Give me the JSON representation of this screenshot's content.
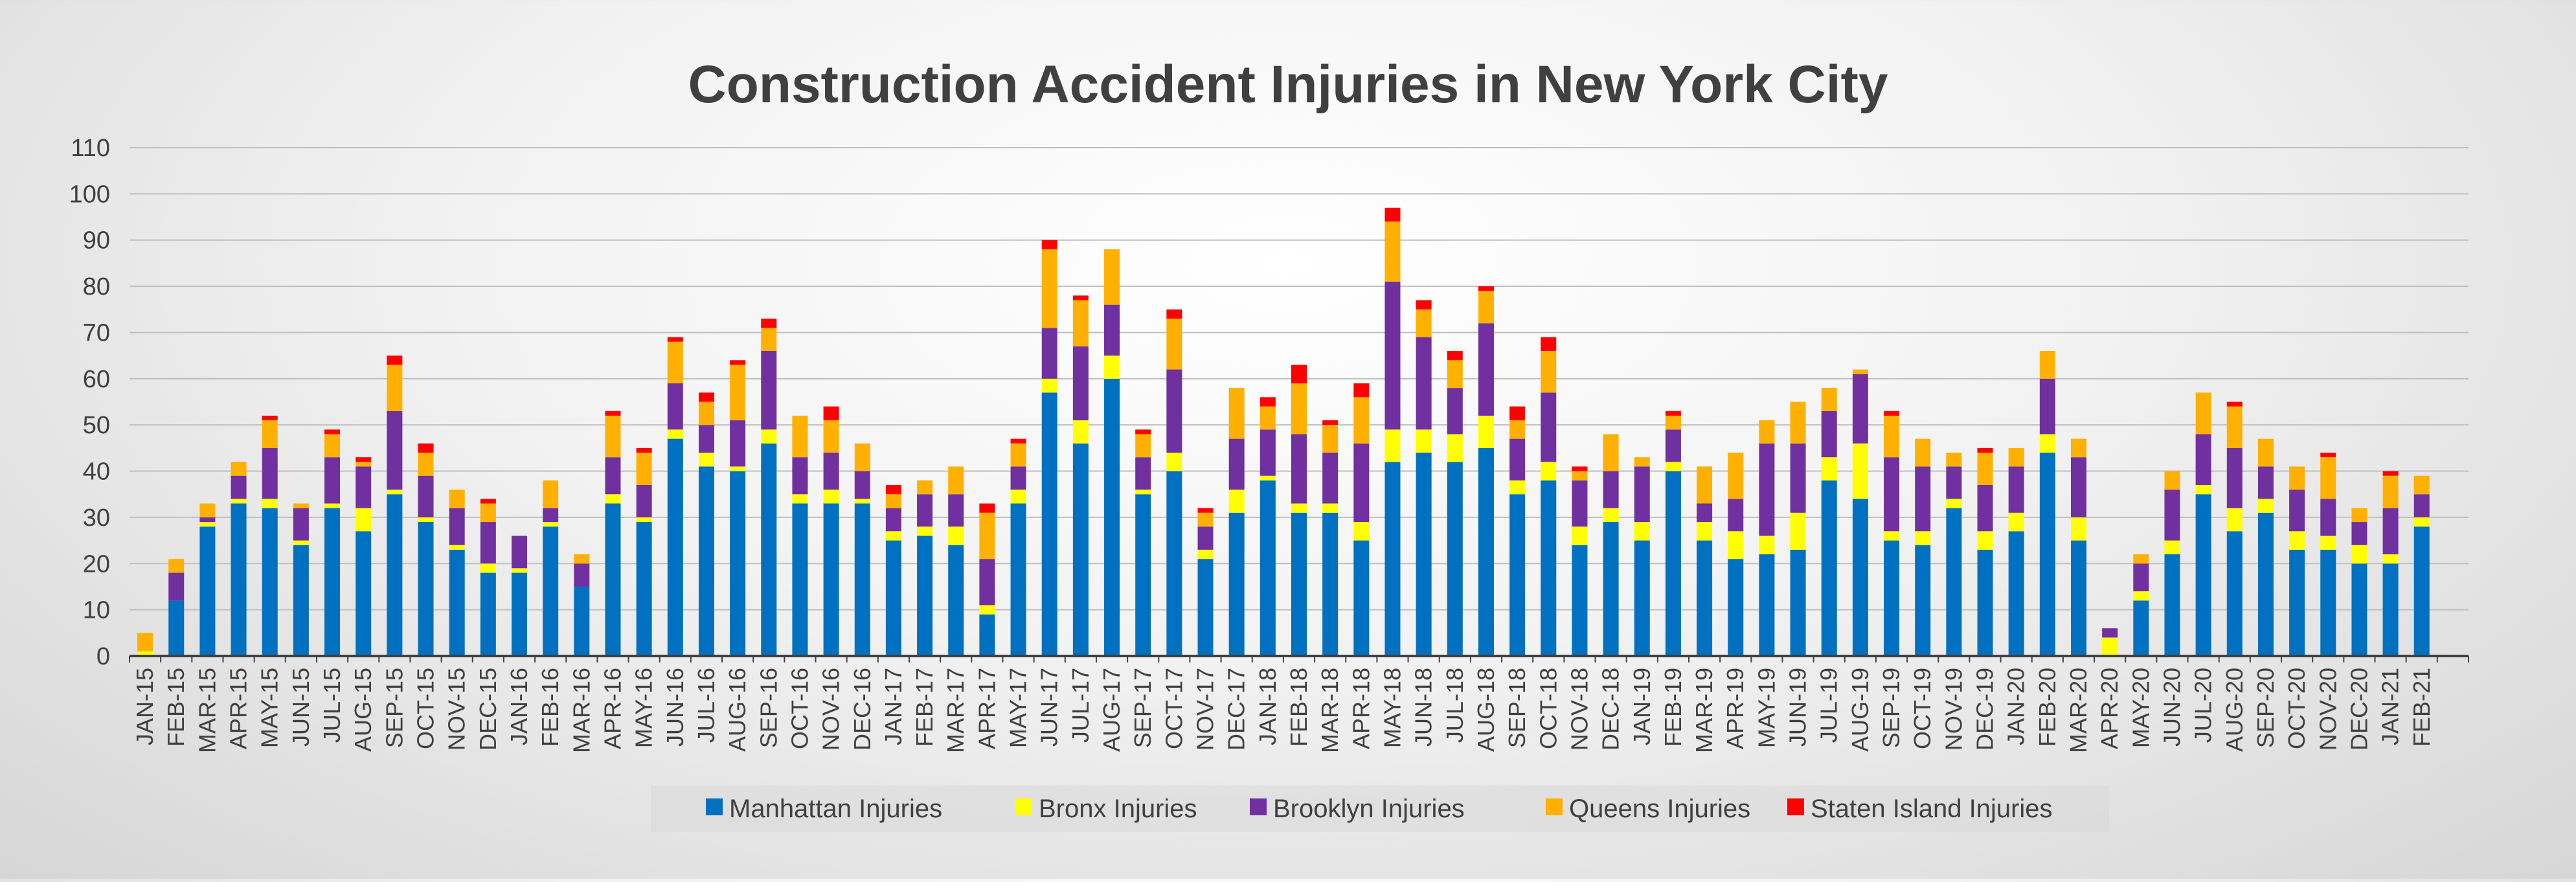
{
  "chart_data": {
    "type": "bar",
    "stacked": true,
    "title": "Construction Accident Injuries in New York City",
    "xlabel": "",
    "ylabel": "",
    "ylim": [
      0,
      110
    ],
    "yticks": [
      0,
      10,
      20,
      30,
      40,
      50,
      60,
      70,
      80,
      90,
      100,
      110
    ],
    "grid": true,
    "legend_position": "bottom",
    "categories": [
      "JAN-15",
      "FEB-15",
      "MAR-15",
      "APR-15",
      "MAY-15",
      "JUN-15",
      "JUL-15",
      "AUG-15",
      "SEP-15",
      "OCT-15",
      "NOV-15",
      "DEC-15",
      "JAN-16",
      "FEB-16",
      "MAR-16",
      "APR-16",
      "MAY-16",
      "JUN-16",
      "JUL-16",
      "AUG-16",
      "SEP-16",
      "OCT-16",
      "NOV-16",
      "DEC-16",
      "JAN-17",
      "FEB-17",
      "MAR-17",
      "APR-17",
      "MAY-17",
      "JUN-17",
      "JUL-17",
      "AUG-17",
      "SEP-17",
      "OCT-17",
      "NOV-17",
      "DEC-17",
      "JAN-18",
      "FEB-18",
      "MAR-18",
      "APR-18",
      "MAY-18",
      "JUN-18",
      "JUL-18",
      "AUG-18",
      "SEP-18",
      "OCT-18",
      "NOV-18",
      "DEC-18",
      "JAN-19",
      "FEB-19",
      "MAR-19",
      "APR-19",
      "MAY-19",
      "JUN-19",
      "JUL-19",
      "AUG-19",
      "SEP-19",
      "OCT-19",
      "NOV-19",
      "DEC-19",
      "JAN-20",
      "FEB-20",
      "MAR-20",
      "APR-20",
      "MAY-20",
      "JUN-20",
      "JUL-20",
      "AUG-20",
      "SEP-20",
      "OCT-20",
      "NOV-20",
      "DEC-20",
      "JAN-21",
      "FEB-21"
    ],
    "bar_slots": 75,
    "series": [
      {
        "name": "Manhattan Injuries",
        "color": "#0070C0",
        "values": [
          0,
          12,
          28,
          33,
          32,
          24,
          32,
          27,
          35,
          29,
          23,
          18,
          18,
          28,
          15,
          33,
          29,
          47,
          41,
          40,
          46,
          33,
          33,
          33,
          25,
          26,
          24,
          9,
          33,
          57,
          46,
          60,
          35,
          40,
          21,
          31,
          38,
          31,
          31,
          25,
          42,
          44,
          42,
          45,
          35,
          38,
          24,
          29,
          25,
          40,
          25,
          21,
          22,
          23,
          38,
          34,
          25,
          24,
          32,
          23,
          27,
          44,
          25,
          0,
          12,
          22,
          35,
          27,
          31,
          23,
          23,
          20,
          20,
          28
        ]
      },
      {
        "name": "Bronx Injuries",
        "color": "#FFFF00",
        "values": [
          1,
          0,
          1,
          1,
          2,
          1,
          1,
          5,
          1,
          1,
          1,
          2,
          1,
          1,
          0,
          2,
          1,
          2,
          3,
          1,
          3,
          2,
          3,
          1,
          2,
          2,
          4,
          2,
          3,
          3,
          5,
          5,
          1,
          4,
          2,
          5,
          1,
          2,
          2,
          4,
          7,
          5,
          6,
          7,
          3,
          4,
          4,
          3,
          4,
          2,
          4,
          6,
          4,
          8,
          5,
          12,
          2,
          3,
          2,
          4,
          4,
          4,
          5,
          4,
          2,
          3,
          2,
          5,
          3,
          4,
          3,
          4,
          2,
          2
        ]
      },
      {
        "name": "Brooklyn Injuries",
        "color": "#7030A0",
        "values": [
          0,
          6,
          1,
          5,
          11,
          7,
          10,
          9,
          17,
          9,
          8,
          9,
          7,
          3,
          5,
          8,
          7,
          10,
          6,
          10,
          17,
          8,
          8,
          6,
          5,
          7,
          7,
          10,
          5,
          11,
          16,
          11,
          7,
          18,
          5,
          11,
          10,
          15,
          11,
          17,
          32,
          20,
          10,
          20,
          9,
          15,
          10,
          8,
          12,
          7,
          4,
          7,
          20,
          15,
          10,
          15,
          16,
          14,
          7,
          10,
          10,
          12,
          13,
          2,
          6,
          11,
          11,
          13,
          7,
          9,
          8,
          5,
          10,
          5
        ]
      },
      {
        "name": "Queens Injuries",
        "color": "#FFB000",
        "values": [
          4,
          3,
          3,
          3,
          6,
          1,
          5,
          1,
          10,
          5,
          4,
          4,
          0,
          6,
          2,
          9,
          7,
          9,
          5,
          12,
          5,
          9,
          7,
          6,
          3,
          3,
          6,
          10,
          5,
          17,
          10,
          12,
          5,
          11,
          3,
          11,
          5,
          11,
          6,
          10,
          13,
          6,
          6,
          7,
          4,
          9,
          2,
          8,
          2,
          3,
          8,
          10,
          5,
          9,
          5,
          1,
          9,
          6,
          3,
          7,
          4,
          6,
          4,
          0,
          2,
          4,
          9,
          9,
          6,
          5,
          9,
          3,
          7,
          4
        ]
      },
      {
        "name": "Staten Island Injuries",
        "color": "#FF0000",
        "values": [
          0,
          0,
          0,
          0,
          1,
          0,
          1,
          1,
          2,
          2,
          0,
          1,
          0,
          0,
          0,
          1,
          1,
          1,
          2,
          1,
          2,
          0,
          3,
          0,
          2,
          0,
          0,
          2,
          1,
          2,
          1,
          0,
          1,
          2,
          1,
          0,
          2,
          4,
          1,
          3,
          3,
          2,
          2,
          1,
          3,
          3,
          1,
          0,
          0,
          1,
          0,
          0,
          0,
          0,
          0,
          0,
          1,
          0,
          0,
          1,
          0,
          0,
          0,
          0,
          0,
          0,
          0,
          1,
          0,
          0,
          1,
          0,
          1,
          0
        ]
      }
    ]
  }
}
